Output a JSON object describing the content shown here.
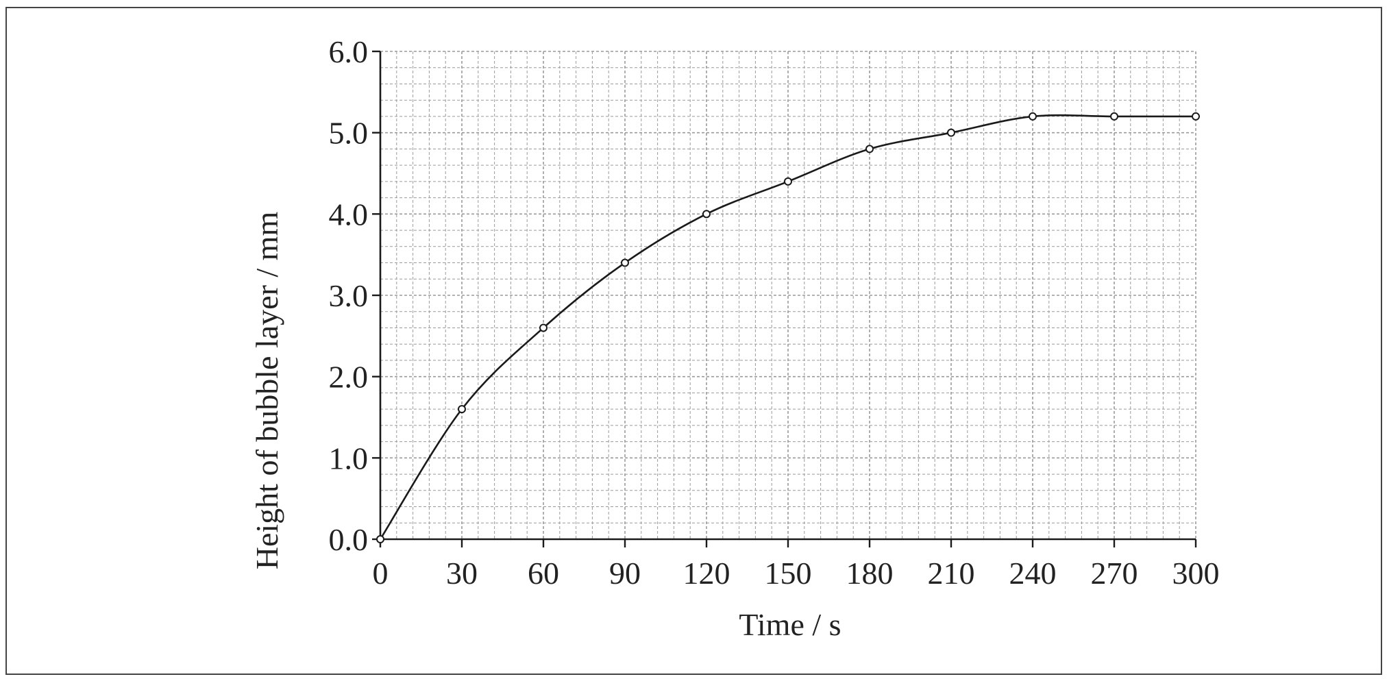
{
  "chart_data": {
    "type": "scatter",
    "title": "",
    "xlabel": "Time / s",
    "ylabel": "Height of bubble layer / mm",
    "xlim": [
      0,
      300
    ],
    "ylim": [
      0.0,
      6.0
    ],
    "x_ticks": [
      "0",
      "30",
      "60",
      "90",
      "120",
      "150",
      "180",
      "210",
      "240",
      "270",
      "300"
    ],
    "y_ticks": [
      "0.0",
      "1.0",
      "2.0",
      "3.0",
      "4.0",
      "5.0",
      "6.0"
    ],
    "grid": true,
    "series": [
      {
        "x": [
          0,
          30,
          60,
          90,
          120,
          150,
          180,
          210,
          240,
          270,
          300
        ],
        "y": [
          0.0,
          1.6,
          2.6,
          3.4,
          4.0,
          4.4,
          4.8,
          5.0,
          5.2,
          5.2,
          5.2
        ],
        "marker": "open-circle",
        "fit": "smooth-curve"
      }
    ],
    "colors": {
      "line": "#1a1a1a",
      "grid": "#9a9a9a",
      "axis": "#1a1a1a"
    }
  }
}
